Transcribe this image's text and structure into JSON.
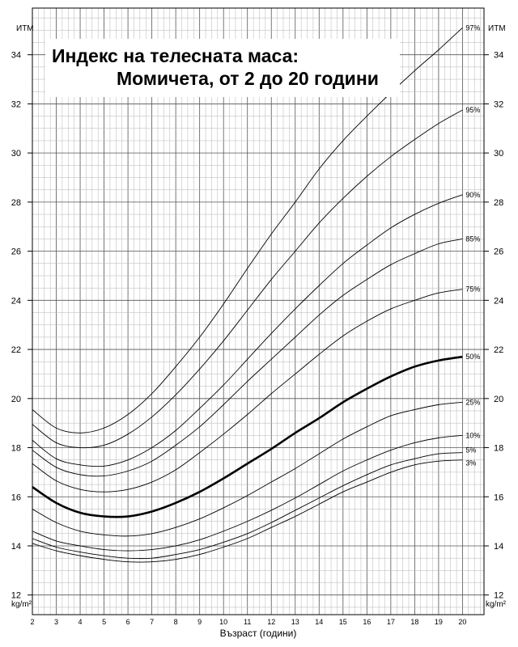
{
  "chart_data": {
    "type": "line",
    "title": "Индекс на телесната маса:",
    "subtitle": "Момичета, от 2 до 20 години",
    "xlabel": "Възраст (години)",
    "ylabel_top": "ИТМ",
    "ylabel_unit": "kg/m²",
    "xlim": [
      2,
      20.9
    ],
    "ylim": [
      11.2,
      35.9
    ],
    "x_ticks": [
      "2",
      "3",
      "4",
      "5",
      "6",
      "7",
      "8",
      "9",
      "10",
      "11",
      "12",
      "13",
      "14",
      "15",
      "16",
      "17",
      "18",
      "19",
      "20"
    ],
    "y_ticks": [
      "12",
      "14",
      "16",
      "18",
      "20",
      "22",
      "24",
      "26",
      "28",
      "30",
      "32",
      "34"
    ],
    "grid": true,
    "series": [
      {
        "name": "3%",
        "x": [
          2,
          3,
          4,
          5,
          6,
          7,
          8,
          9,
          10,
          11,
          12,
          13,
          14,
          15,
          16,
          17,
          18,
          19,
          20
        ],
        "y": [
          14.1,
          13.8,
          13.6,
          13.45,
          13.35,
          13.35,
          13.45,
          13.65,
          13.95,
          14.3,
          14.75,
          15.2,
          15.7,
          16.2,
          16.6,
          17.0,
          17.3,
          17.45,
          17.5
        ]
      },
      {
        "name": "5%",
        "x": [
          2,
          3,
          4,
          5,
          6,
          7,
          8,
          9,
          10,
          11,
          12,
          13,
          14,
          15,
          16,
          17,
          18,
          19,
          20
        ],
        "y": [
          14.3,
          13.95,
          13.75,
          13.6,
          13.5,
          13.5,
          13.65,
          13.85,
          14.15,
          14.5,
          14.95,
          15.45,
          15.95,
          16.45,
          16.9,
          17.3,
          17.55,
          17.75,
          17.8
        ]
      },
      {
        "name": "10%",
        "x": [
          2,
          3,
          4,
          5,
          6,
          7,
          8,
          9,
          10,
          11,
          12,
          13,
          14,
          15,
          16,
          17,
          18,
          19,
          20
        ],
        "y": [
          14.6,
          14.2,
          14.0,
          13.85,
          13.8,
          13.85,
          14.0,
          14.25,
          14.6,
          15.0,
          15.45,
          15.95,
          16.5,
          17.05,
          17.5,
          17.9,
          18.2,
          18.4,
          18.5
        ]
      },
      {
        "name": "25%",
        "x": [
          2,
          3,
          4,
          5,
          6,
          7,
          8,
          9,
          10,
          11,
          12,
          13,
          14,
          15,
          16,
          17,
          18,
          19,
          20
        ],
        "y": [
          15.5,
          14.95,
          14.6,
          14.45,
          14.4,
          14.5,
          14.75,
          15.1,
          15.55,
          16.05,
          16.6,
          17.15,
          17.75,
          18.35,
          18.85,
          19.3,
          19.55,
          19.75,
          19.85
        ]
      },
      {
        "name": "50%",
        "x": [
          2,
          3,
          4,
          5,
          6,
          7,
          8,
          9,
          10,
          11,
          12,
          13,
          14,
          15,
          16,
          17,
          18,
          19,
          20
        ],
        "y": [
          16.4,
          15.75,
          15.35,
          15.2,
          15.2,
          15.4,
          15.75,
          16.2,
          16.75,
          17.35,
          17.95,
          18.6,
          19.2,
          19.85,
          20.4,
          20.9,
          21.3,
          21.55,
          21.7
        ]
      },
      {
        "name": "75%",
        "x": [
          2,
          3,
          4,
          5,
          6,
          7,
          8,
          9,
          10,
          11,
          12,
          13,
          14,
          15,
          16,
          17,
          18,
          19,
          20
        ],
        "y": [
          17.35,
          16.65,
          16.3,
          16.2,
          16.3,
          16.6,
          17.1,
          17.8,
          18.55,
          19.35,
          20.2,
          21.0,
          21.8,
          22.55,
          23.15,
          23.65,
          24.0,
          24.3,
          24.45
        ]
      },
      {
        "name": "85%",
        "x": [
          2,
          3,
          4,
          5,
          6,
          7,
          8,
          9,
          10,
          11,
          12,
          13,
          14,
          15,
          16,
          17,
          18,
          19,
          20
        ],
        "y": [
          17.9,
          17.2,
          16.9,
          16.85,
          17.05,
          17.45,
          18.1,
          18.85,
          19.75,
          20.7,
          21.6,
          22.5,
          23.4,
          24.2,
          24.85,
          25.45,
          25.9,
          26.3,
          26.5
        ]
      },
      {
        "name": "90%",
        "x": [
          2,
          3,
          4,
          5,
          6,
          7,
          8,
          9,
          10,
          11,
          12,
          13,
          14,
          15,
          16,
          17,
          18,
          19,
          20
        ],
        "y": [
          18.3,
          17.55,
          17.3,
          17.25,
          17.5,
          18.0,
          18.7,
          19.6,
          20.55,
          21.6,
          22.65,
          23.65,
          24.6,
          25.5,
          26.25,
          26.95,
          27.5,
          27.95,
          28.3
        ]
      },
      {
        "name": "95%",
        "x": [
          2,
          3,
          4,
          5,
          6,
          7,
          8,
          9,
          10,
          11,
          12,
          13,
          14,
          15,
          16,
          17,
          18,
          19,
          20
        ],
        "y": [
          18.95,
          18.2,
          18.0,
          18.1,
          18.55,
          19.25,
          20.15,
          21.2,
          22.35,
          23.6,
          24.85,
          26.0,
          27.15,
          28.15,
          29.05,
          29.85,
          30.55,
          31.2,
          31.75
        ]
      },
      {
        "name": "97%",
        "x": [
          2,
          3,
          4,
          5,
          6,
          7,
          8,
          9,
          10,
          11,
          12,
          13,
          14,
          15,
          16,
          17,
          18,
          19,
          20
        ],
        "y": [
          19.55,
          18.8,
          18.6,
          18.8,
          19.35,
          20.2,
          21.3,
          22.5,
          23.85,
          25.3,
          26.7,
          28.0,
          29.35,
          30.5,
          31.5,
          32.45,
          33.35,
          34.2,
          35.1
        ]
      }
    ],
    "bold_series": "50%"
  }
}
